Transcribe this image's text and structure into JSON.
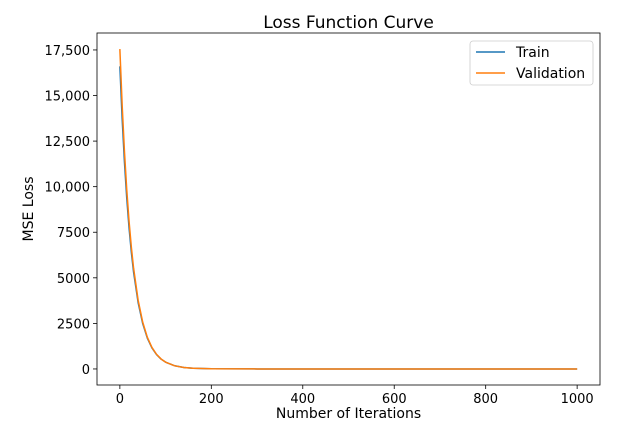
{
  "chart_data": {
    "type": "line",
    "title": "Loss Function Curve",
    "xlabel": "Number of Iterations",
    "ylabel": "MSE Loss",
    "xlim": [
      -50,
      1050
    ],
    "ylim": [
      -880,
      18430
    ],
    "xticks": [
      0,
      200,
      400,
      600,
      800,
      1000
    ],
    "xtick_labels": [
      "0",
      "200",
      "400",
      "600",
      "800",
      "1000"
    ],
    "yticks": [
      0,
      2500,
      5000,
      7500,
      10000,
      12500,
      15000,
      17500
    ],
    "ytick_labels": [
      "0",
      "2500",
      "5000",
      "7500",
      "10,000",
      "12,500",
      "15,000",
      "17,500"
    ],
    "grid": false,
    "legend_position": "top-right",
    "x": [
      0,
      5,
      10,
      15,
      20,
      25,
      30,
      40,
      50,
      60,
      70,
      80,
      90,
      100,
      120,
      140,
      160,
      200,
      300,
      400,
      500,
      600,
      700,
      800,
      900,
      1000
    ],
    "series": [
      {
        "name": "Train",
        "color": "#1f77b4",
        "values": [
          16600,
          13730,
          11355,
          9388,
          7764,
          6420,
          5309,
          3631,
          2483,
          1698,
          1161,
          794,
          543,
          372,
          174,
          81,
          38,
          8,
          1,
          0,
          0,
          0,
          0,
          0,
          0,
          0
        ]
      },
      {
        "name": "Validation",
        "color": "#ff7f0e",
        "values": [
          17550,
          14477,
          11943,
          9853,
          8126,
          6704,
          5530,
          3763,
          2561,
          1743,
          1186,
          807,
          549,
          374,
          173,
          80,
          37,
          8,
          1,
          0,
          0,
          0,
          0,
          0,
          0,
          0
        ]
      }
    ]
  }
}
